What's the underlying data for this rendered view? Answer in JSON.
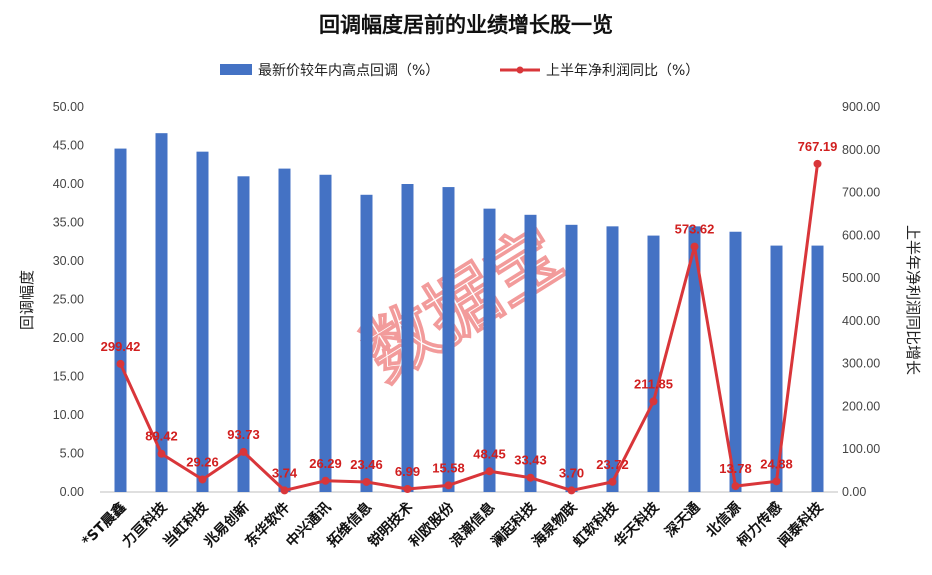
{
  "chart_data": {
    "type": "bar+line",
    "title": "回调幅度居前的业绩增长股一览",
    "watermark": "数据宝",
    "categories": [
      "*ST晨鑫",
      "力亘科技",
      "当虹科技",
      "兆易创新",
      "东华软件",
      "中兴通讯",
      "拓维信息",
      "锐明技术",
      "利欧股份",
      "浪潮信息",
      "澜起科技",
      "海泉物联",
      "虹软科技",
      "华天科技",
      "深天通",
      "北信源",
      "柯力传感",
      "闻泰科技"
    ],
    "series": [
      {
        "name": "最新价较年内高点回调（%）",
        "type": "bar",
        "axis": "left",
        "color": "#4472c4",
        "values": [
          44.6,
          46.6,
          44.2,
          41.0,
          42.0,
          41.2,
          38.6,
          40.0,
          39.6,
          36.8,
          36.0,
          34.7,
          34.5,
          33.3,
          34.5,
          33.8,
          32.0,
          32.0
        ]
      },
      {
        "name": "上半年净利润同比（%）",
        "type": "line",
        "axis": "right",
        "color": "#d9363a",
        "values": [
          299.42,
          89.42,
          29.26,
          93.73,
          3.74,
          26.29,
          23.46,
          6.99,
          15.58,
          48.45,
          33.43,
          3.7,
          23.72,
          211.85,
          573.62,
          13.78,
          24.88,
          767.19
        ],
        "labels": [
          "299.42",
          "89.42",
          "29.26",
          "93.73",
          "3.74",
          "26.29",
          "23.46",
          "6.99",
          "15.58",
          "48.45",
          "33.43",
          "3.70",
          "23.72",
          "211.85",
          "573.62",
          "13.78",
          "24.88",
          "767.19"
        ]
      }
    ],
    "ylabel": "回调幅度",
    "ylim": [
      0,
      50
    ],
    "yticks": [
      "0.00",
      "5.00",
      "10.00",
      "15.00",
      "20.00",
      "25.00",
      "30.00",
      "35.00",
      "40.00",
      "45.00",
      "50.00"
    ],
    "y2label": "上半年净利润同比增长",
    "y2lim": [
      0,
      900
    ],
    "y2ticks": [
      "0.00",
      "100.00",
      "200.00",
      "300.00",
      "400.00",
      "500.00",
      "600.00",
      "700.00",
      "800.00",
      "900.00"
    ],
    "grid": false,
    "legend": "top-center"
  }
}
